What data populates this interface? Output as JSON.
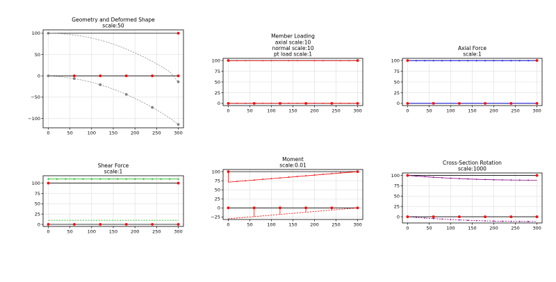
{
  "colors": {
    "frame": "#000000",
    "grid": "#dddddd",
    "geometry": "#000000",
    "node": "#ff0000",
    "deformed": "#808080",
    "axial": "#0000ff",
    "shear": "#00aa00",
    "moment": "#ff0000",
    "rotation": "#800080"
  },
  "chart_data": [
    {
      "id": "geometry",
      "type": "line",
      "title": [
        "Geometry and Deformed Shape",
        "scale:50"
      ],
      "xlim": [
        -12,
        312
      ],
      "ylim": [
        -122,
        108
      ],
      "xticks": [
        0,
        50,
        100,
        150,
        200,
        250,
        300
      ],
      "yticks": [
        -100,
        -50,
        0,
        50,
        100
      ],
      "ytick_labels": [
        "−100",
        "−50",
        "0",
        "50",
        "100"
      ],
      "series": [
        {
          "role": "geometry",
          "x": [
            0,
            300
          ],
          "y": [
            100,
            100
          ]
        },
        {
          "role": "geometry",
          "x": [
            0,
            300
          ],
          "y": [
            0,
            0
          ]
        },
        {
          "role": "deformed",
          "style": "dashed",
          "x": [
            0,
            20,
            40,
            60,
            80,
            100,
            120,
            140,
            160,
            180,
            200,
            220,
            240,
            260,
            280,
            300
          ],
          "y": [
            100,
            99.6,
            98.2,
            96,
            93,
            89,
            84,
            78,
            71,
            63,
            54,
            44.5,
            34,
            22.5,
            10,
            -14
          ]
        },
        {
          "role": "deformed",
          "style": "dashed",
          "x": [
            0,
            20,
            40,
            60,
            80,
            100,
            120,
            140,
            160,
            180,
            200,
            220,
            240,
            260,
            280,
            300
          ],
          "y": [
            0,
            -1.4,
            -3.6,
            -6.5,
            -10.3,
            -15,
            -20.8,
            -27.5,
            -35,
            -43.5,
            -53,
            -63,
            -74,
            -86,
            -99,
            -114
          ]
        }
      ],
      "markers": [
        {
          "role": "node",
          "x": [
            60,
            120,
            180,
            240,
            300,
            300
          ],
          "y": [
            0,
            0,
            0,
            0,
            0,
            100
          ]
        },
        {
          "role": "deformed",
          "x": [
            0,
            0,
            60,
            120,
            180,
            240,
            300,
            300
          ],
          "y": [
            100,
            0,
            -6.5,
            -20.8,
            -43.5,
            -74,
            -114,
            -14
          ]
        }
      ]
    },
    {
      "id": "member-loading",
      "type": "line",
      "title": [
        "Member Loading",
        "axial scale:10",
        "normal scale:10",
        "pt load scale:1"
      ],
      "xlim": [
        -12,
        312
      ],
      "ylim": [
        -5,
        105
      ],
      "xticks": [
        0,
        50,
        100,
        150,
        200,
        250,
        300
      ],
      "yticks": [
        0,
        25,
        50,
        75,
        100
      ],
      "ytick_labels": [
        "0",
        "25",
        "50",
        "75",
        "100"
      ],
      "series": [
        {
          "role": "geometry",
          "x": [
            0,
            300
          ],
          "y": [
            100,
            100
          ]
        },
        {
          "role": "geometry",
          "x": [
            0,
            300
          ],
          "y": [
            0,
            0
          ]
        },
        {
          "role": "moment",
          "x": [
            0,
            300
          ],
          "y": [
            99.5,
            99.5
          ]
        },
        {
          "role": "moment",
          "x": [
            0,
            300
          ],
          "y": [
            0.5,
            0.5
          ]
        }
      ],
      "markers": [
        {
          "role": "node",
          "x": [
            0,
            300,
            0,
            60,
            120,
            180,
            240,
            300
          ],
          "y": [
            100,
            100,
            0,
            0,
            0,
            0,
            0,
            0
          ]
        },
        {
          "role": "small-node",
          "x": [
            20,
            40,
            80,
            100,
            140,
            160,
            200,
            220,
            260,
            280,
            20,
            40,
            80,
            100,
            140,
            160,
            200,
            220,
            260,
            280
          ],
          "y": [
            99.5,
            99.5,
            99.5,
            99.5,
            99.5,
            99.5,
            99.5,
            99.5,
            99.5,
            99.5,
            0.5,
            0.5,
            0.5,
            0.5,
            0.5,
            0.5,
            0.5,
            0.5,
            0.5,
            0.5
          ]
        }
      ]
    },
    {
      "id": "axial-force",
      "type": "line",
      "title": [
        "Axial Force",
        "scale:1"
      ],
      "xlim": [
        -12,
        312
      ],
      "ylim": [
        -5,
        105
      ],
      "xticks": [
        0,
        50,
        100,
        150,
        200,
        250,
        300
      ],
      "yticks": [
        0,
        25,
        50,
        75,
        100
      ],
      "ytick_labels": [
        "0",
        "25",
        "50",
        "75",
        "100"
      ],
      "series": [
        {
          "role": "geometry",
          "x": [
            0,
            300
          ],
          "y": [
            100,
            100
          ]
        },
        {
          "role": "geometry",
          "x": [
            0,
            300
          ],
          "y": [
            0,
            0
          ]
        },
        {
          "role": "axial",
          "x": [
            0,
            300
          ],
          "y": [
            99.5,
            99.5
          ]
        },
        {
          "role": "axial",
          "x": [
            0,
            300
          ],
          "y": [
            0.5,
            0.5
          ]
        }
      ],
      "markers": [
        {
          "role": "node",
          "x": [
            0,
            300,
            0,
            60,
            120,
            180,
            240,
            300
          ],
          "y": [
            100,
            100,
            0,
            0,
            0,
            0,
            0,
            0
          ]
        },
        {
          "role": "axial-node",
          "x": [
            20,
            40,
            60,
            80,
            100,
            120,
            140,
            160,
            180,
            200,
            220,
            240,
            260,
            280
          ],
          "y": [
            99.5,
            99.5,
            99.5,
            99.5,
            99.5,
            99.5,
            99.5,
            99.5,
            99.5,
            99.5,
            99.5,
            99.5,
            99.5,
            99.5
          ]
        }
      ]
    },
    {
      "id": "shear-force",
      "type": "line",
      "title": [
        "Shear Force",
        "scale:1"
      ],
      "xlim": [
        -12,
        312
      ],
      "ylim": [
        -5,
        118
      ],
      "xticks": [
        0,
        50,
        100,
        150,
        200,
        250,
        300
      ],
      "yticks": [
        0,
        25,
        50,
        75,
        100
      ],
      "ytick_labels": [
        "0",
        "25",
        "50",
        "75",
        "100"
      ],
      "series": [
        {
          "role": "geometry",
          "x": [
            0,
            300
          ],
          "y": [
            100,
            100
          ]
        },
        {
          "role": "geometry",
          "x": [
            0,
            300
          ],
          "y": [
            0,
            0
          ]
        },
        {
          "role": "shear",
          "x": [
            0,
            300
          ],
          "y": [
            110,
            110
          ]
        },
        {
          "role": "shear",
          "style": "dashed",
          "x": [
            0,
            300
          ],
          "y": [
            10,
            10
          ]
        }
      ],
      "markers": [
        {
          "role": "node",
          "x": [
            0,
            300,
            0,
            60,
            120,
            180,
            240,
            300
          ],
          "y": [
            100,
            100,
            0,
            0,
            0,
            0,
            0,
            0
          ]
        },
        {
          "role": "shear-node",
          "x": [
            0,
            20,
            40,
            60,
            80,
            100,
            120,
            140,
            160,
            180,
            200,
            220,
            240,
            260,
            280,
            300
          ],
          "y": [
            110,
            110,
            110,
            110,
            110,
            110,
            110,
            110,
            110,
            110,
            110,
            110,
            110,
            110,
            110,
            110
          ]
        }
      ]
    },
    {
      "id": "moment",
      "type": "line",
      "title": [
        "Moment",
        "scale:0.01"
      ],
      "xlim": [
        -12,
        312
      ],
      "ylim": [
        -32,
        106
      ],
      "xticks": [
        0,
        50,
        100,
        150,
        200,
        250,
        300
      ],
      "yticks": [
        -25,
        0,
        25,
        50,
        75,
        100
      ],
      "ytick_labels": [
        "−25",
        "0",
        "25",
        "50",
        "75",
        "100"
      ],
      "series": [
        {
          "role": "geometry",
          "x": [
            0,
            300
          ],
          "y": [
            100,
            100
          ]
        },
        {
          "role": "geometry",
          "x": [
            0,
            300
          ],
          "y": [
            0,
            0
          ]
        },
        {
          "role": "moment",
          "x": [
            0,
            300
          ],
          "y": [
            71,
            100
          ]
        },
        {
          "role": "moment",
          "style": "dashed",
          "x": [
            0,
            300
          ],
          "y": [
            -30,
            0
          ]
        }
      ],
      "stems": {
        "x": [
          0,
          60,
          120,
          180,
          240,
          300
        ],
        "base": [
          100,
          0,
          0,
          0,
          0,
          100
        ],
        "top": [
          71,
          -24,
          -18,
          -12,
          -6,
          100
        ]
      },
      "markers": [
        {
          "role": "node",
          "x": [
            0,
            300,
            0,
            60,
            120,
            180,
            240,
            300
          ],
          "y": [
            100,
            100,
            0,
            0,
            0,
            0,
            0,
            0
          ]
        },
        {
          "role": "small-node",
          "x": [
            20,
            40,
            60,
            80,
            100,
            120,
            140,
            160,
            180,
            200,
            220,
            240,
            260,
            280
          ],
          "y": [
            73,
            75,
            77,
            79,
            81,
            83,
            85,
            87,
            89,
            91,
            93,
            95,
            97,
            99
          ]
        }
      ]
    },
    {
      "id": "rotation",
      "type": "line",
      "title": [
        "Cross-Section Rotation",
        "scale:1000"
      ],
      "xlim": [
        -12,
        312
      ],
      "ylim": [
        -15,
        106
      ],
      "xticks": [
        0,
        50,
        100,
        150,
        200,
        250,
        300
      ],
      "yticks": [
        0,
        25,
        50,
        75,
        100
      ],
      "ytick_labels": [
        "0",
        "25",
        "50",
        "75",
        "100"
      ],
      "series": [
        {
          "role": "geometry",
          "x": [
            0,
            300
          ],
          "y": [
            100,
            100
          ]
        },
        {
          "role": "geometry",
          "x": [
            0,
            300
          ],
          "y": [
            0,
            0
          ]
        },
        {
          "role": "rotation",
          "x": [
            0,
            50,
            100,
            150,
            200,
            250,
            300
          ],
          "y": [
            100,
            96.2,
            93.2,
            91,
            89.5,
            88.8,
            88.5
          ]
        },
        {
          "role": "rotation",
          "style": "dashed",
          "x": [
            0,
            50,
            100,
            150,
            200,
            250,
            300
          ],
          "y": [
            0,
            -3.8,
            -6.8,
            -9,
            -10.5,
            -11.2,
            -11.5
          ]
        }
      ],
      "markers": [
        {
          "role": "node",
          "x": [
            0,
            300,
            0,
            60,
            120,
            180,
            240,
            300
          ],
          "y": [
            100,
            100,
            0,
            0,
            0,
            0,
            0,
            0
          ]
        },
        {
          "role": "rotation-node",
          "x": [
            20,
            40,
            60,
            80,
            100,
            120,
            140,
            160,
            180,
            200,
            220,
            240,
            260,
            280,
            20,
            40,
            60,
            80,
            100,
            120,
            140,
            160,
            180,
            200,
            220,
            240,
            260,
            280
          ],
          "y": [
            98.4,
            97,
            95.6,
            94.5,
            93.2,
            92.2,
            91.4,
            90.7,
            90.1,
            89.5,
            89.2,
            88.9,
            88.7,
            88.5,
            -1.6,
            -3,
            -4.4,
            -5.5,
            -6.8,
            -7.8,
            -8.6,
            -9.3,
            -9.9,
            -10.5,
            -10.8,
            -11.1,
            -11.3,
            -11.5
          ]
        }
      ]
    }
  ]
}
